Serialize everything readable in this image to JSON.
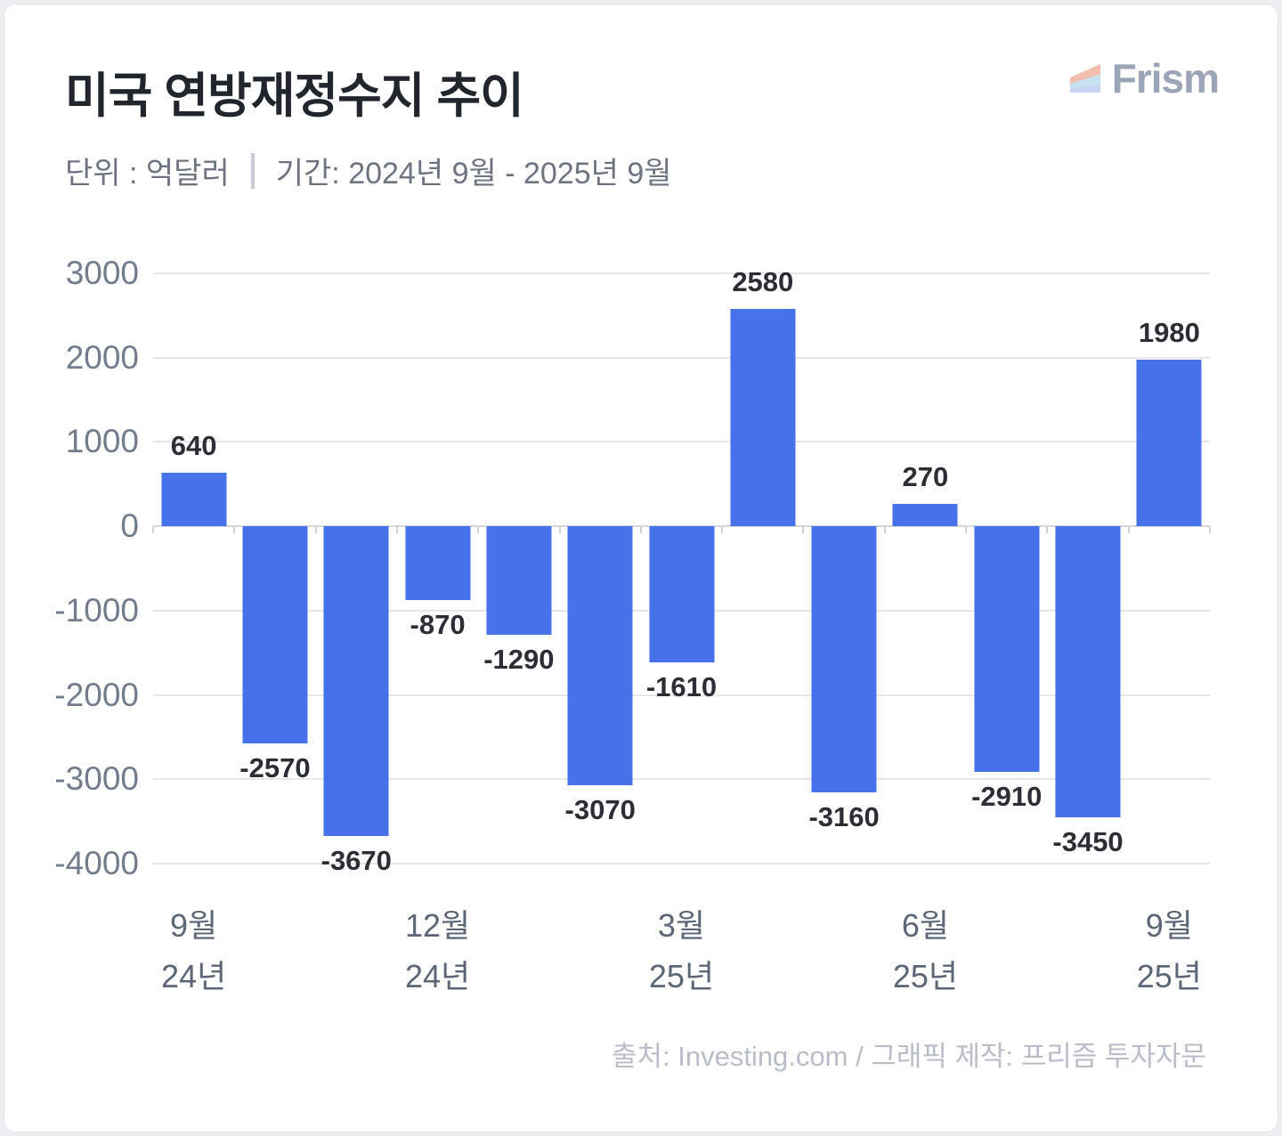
{
  "header": {
    "title": "미국 연방재정수지 추이",
    "unit_label": "단위 : 억달러",
    "period_label": "기간: 2024년 9월 - 2025년 9월",
    "brand_name": "Frism"
  },
  "chart_data": {
    "type": "bar",
    "title": "미국 연방재정수지 추이",
    "unit": "억달러",
    "period": "2024년 9월 - 2025년 9월",
    "values": [
      640,
      -2570,
      -3670,
      -870,
      -1290,
      -3070,
      -1610,
      2580,
      -3160,
      270,
      -2910,
      -3450,
      1980
    ],
    "x_tick_labels": [
      {
        "index": 0,
        "month": "9월",
        "year": "24년"
      },
      {
        "index": 3,
        "month": "12월",
        "year": "24년"
      },
      {
        "index": 6,
        "month": "3월",
        "year": "25년"
      },
      {
        "index": 9,
        "month": "6월",
        "year": "25년"
      },
      {
        "index": 12,
        "month": "9월",
        "year": "25년"
      }
    ],
    "y_ticks": [
      3000,
      2000,
      1000,
      0,
      -1000,
      -2000,
      -3000,
      -4000
    ],
    "ylim": [
      -4000,
      3000
    ],
    "bar_color": "#4571E9",
    "grid": true,
    "legend": false,
    "value_labels": true
  },
  "footer": {
    "source": "출처: Investing.com / 그래픽 제작: 프리즘 투자자문"
  },
  "colors": {
    "bar": "#4571E9",
    "background": "#ECEEF1",
    "card": "#FFFFFF",
    "title_text": "#21262D",
    "subtitle_text": "#6D7480",
    "y_axis_text": "#737C8C",
    "x_axis_text": "#5D6676",
    "value_label_text": "#2B2E34",
    "gridline": "#E7E7EA",
    "zero_line": "#D7D7DB",
    "footer_text": "#B9BDC8",
    "brand_text": "#9CA4B8",
    "logo_band_top": "#F2BFAF",
    "logo_band_middle": "#C6E1F0",
    "logo_band_bottom": "#C9D3F2"
  }
}
